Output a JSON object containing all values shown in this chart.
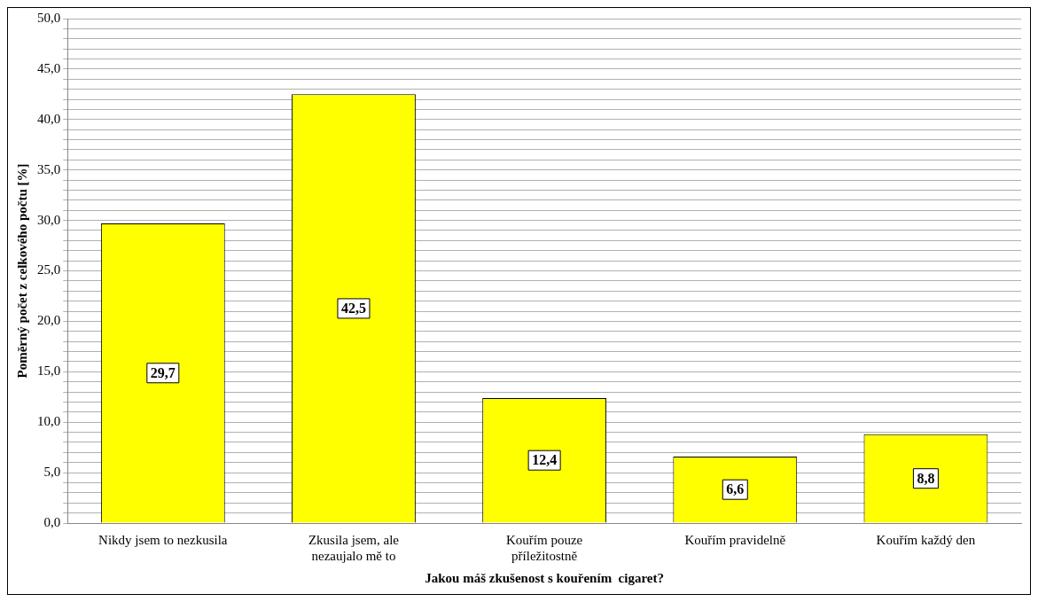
{
  "chart_data": {
    "type": "bar",
    "xlabel": "Jakou máš zkušenost s kouřením  cigaret?",
    "ylabel": "Poměrný počet z celkového počtu [%]",
    "categories": [
      "Nikdy jsem to nezkusila",
      "Zkusila jsem, ale nezaujalo mě to",
      "Kouřím pouze příležitostně",
      "Kouřím pravidelně",
      "Kouřím každý den"
    ],
    "values": [
      29.7,
      42.5,
      12.4,
      6.6,
      8.8
    ],
    "value_labels": [
      "29,7",
      "42,5",
      "12,4",
      "6,6",
      "8,8"
    ],
    "color": "#ffff00",
    "ylim": [
      0,
      50
    ],
    "yticks": [
      {
        "value": 0,
        "label": "0,0"
      },
      {
        "value": 1,
        "label": null
      },
      {
        "value": 2,
        "label": null
      },
      {
        "value": 3,
        "label": null
      },
      {
        "value": 4,
        "label": null
      },
      {
        "value": 5,
        "label": "5,0"
      },
      {
        "value": 6,
        "label": null
      },
      {
        "value": 7,
        "label": null
      },
      {
        "value": 8,
        "label": null
      },
      {
        "value": 9,
        "label": null
      },
      {
        "value": 10,
        "label": "10,0"
      },
      {
        "value": 11,
        "label": null
      },
      {
        "value": 12,
        "label": null
      },
      {
        "value": 13,
        "label": null
      },
      {
        "value": 14,
        "label": null
      },
      {
        "value": 15,
        "label": "15,0"
      },
      {
        "value": 16,
        "label": null
      },
      {
        "value": 17,
        "label": null
      },
      {
        "value": 18,
        "label": null
      },
      {
        "value": 19,
        "label": null
      },
      {
        "value": 20,
        "label": "20,0"
      },
      {
        "value": 21,
        "label": null
      },
      {
        "value": 22,
        "label": null
      },
      {
        "value": 23,
        "label": null
      },
      {
        "value": 24,
        "label": null
      },
      {
        "value": 25,
        "label": "25,0"
      },
      {
        "value": 26,
        "label": null
      },
      {
        "value": 27,
        "label": null
      },
      {
        "value": 28,
        "label": null
      },
      {
        "value": 29,
        "label": null
      },
      {
        "value": 30,
        "label": "30,0"
      },
      {
        "value": 31,
        "label": null
      },
      {
        "value": 32,
        "label": null
      },
      {
        "value": 33,
        "label": null
      },
      {
        "value": 34,
        "label": null
      },
      {
        "value": 35,
        "label": "35,0"
      },
      {
        "value": 36,
        "label": null
      },
      {
        "value": 37,
        "label": null
      },
      {
        "value": 38,
        "label": null
      },
      {
        "value": 39,
        "label": null
      },
      {
        "value": 40,
        "label": "40,0"
      },
      {
        "value": 41,
        "label": null
      },
      {
        "value": 42,
        "label": null
      },
      {
        "value": 43,
        "label": null
      },
      {
        "value": 44,
        "label": null
      },
      {
        "value": 45,
        "label": "45,0"
      },
      {
        "value": 46,
        "label": null
      },
      {
        "value": 47,
        "label": null
      },
      {
        "value": 48,
        "label": null
      },
      {
        "value": 49,
        "label": null
      },
      {
        "value": 50,
        "label": "50,0"
      }
    ],
    "grid": "y",
    "legend": false
  }
}
